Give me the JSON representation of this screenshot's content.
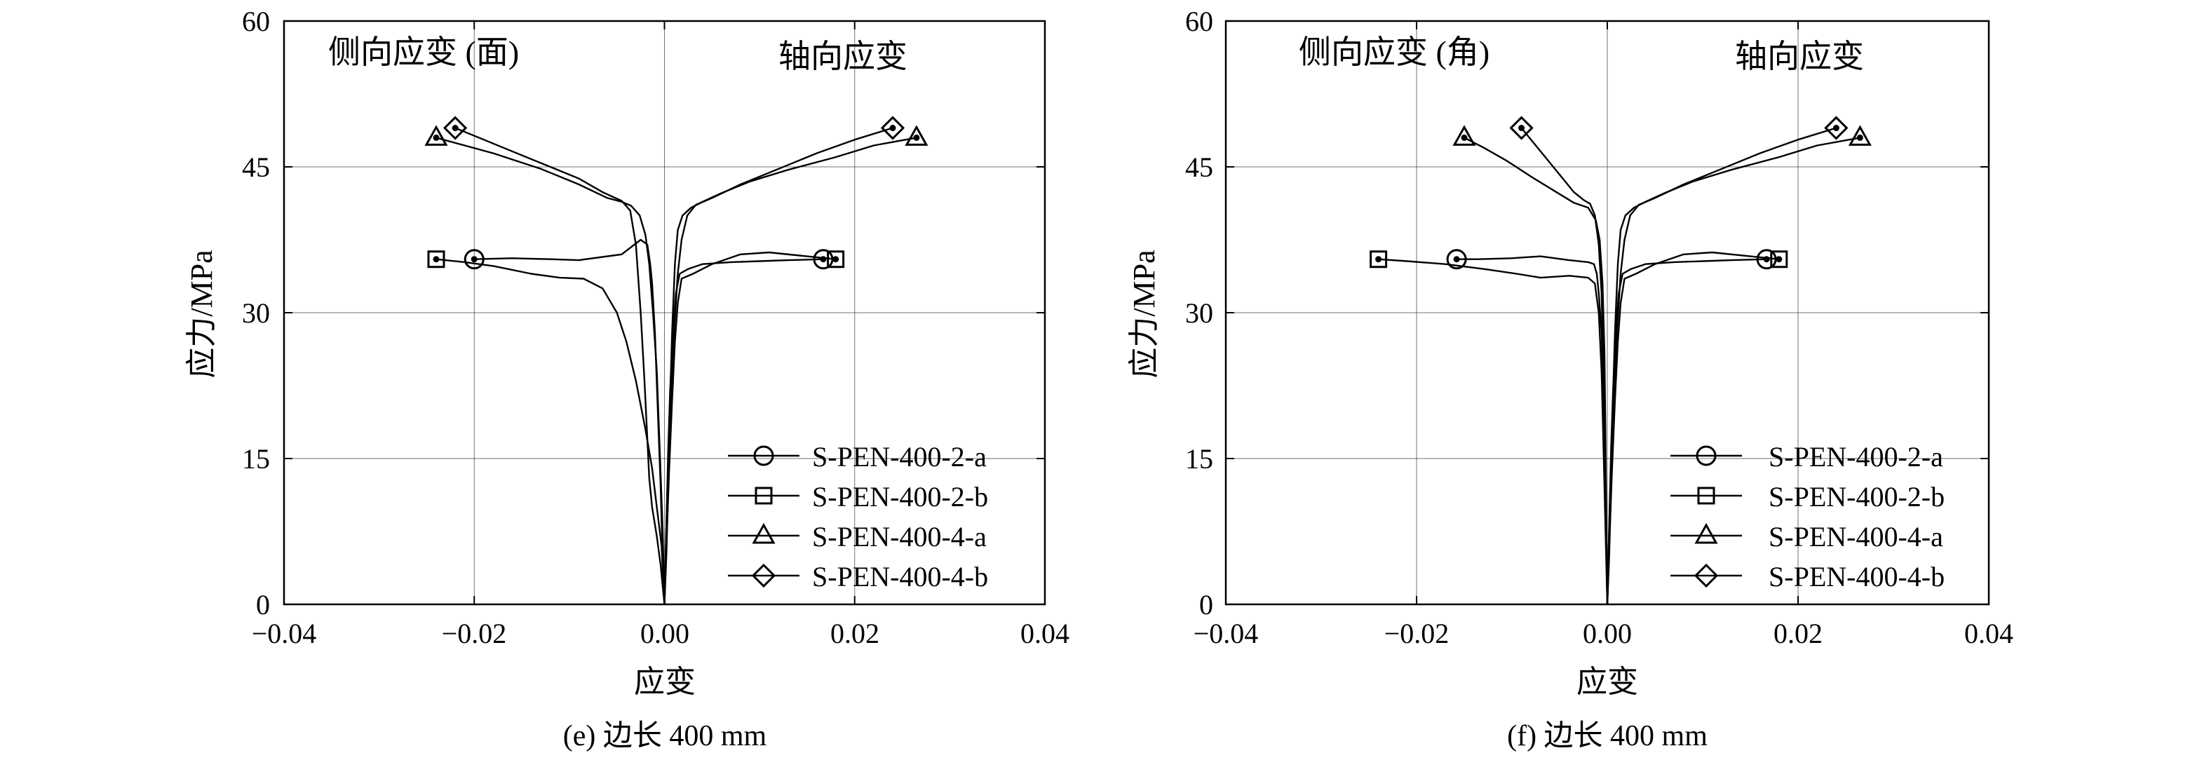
{
  "chart_data": [
    {
      "type": "line",
      "panel": "e",
      "caption": "(e) 边长 400 mm",
      "xlabel": "应变",
      "ylabel": "应力/MPa",
      "xlim": [
        -0.04,
        0.04
      ],
      "ylim": [
        0,
        60
      ],
      "x_ticks": [
        -0.04,
        -0.02,
        0.0,
        0.02,
        0.04
      ],
      "x_tick_labels": [
        "−0.04",
        "−0.02",
        "0.00",
        "0.02",
        "0.04"
      ],
      "y_ticks": [
        0,
        15,
        30,
        45,
        60
      ],
      "y_tick_labels": [
        "0",
        "15",
        "30",
        "45",
        "60"
      ],
      "grid": true,
      "legend_position": "bottom-right",
      "annotations": [
        {
          "text": "侧向应变 (面)",
          "side": "left"
        },
        {
          "text": "轴向应变",
          "side": "right"
        }
      ],
      "series": [
        {
          "name": "S-PEN-400-2-a",
          "marker": "circle",
          "lateral": [
            [
              0,
              0
            ],
            [
              -0.0002,
              5
            ],
            [
              -0.0004,
              12
            ],
            [
              -0.0007,
              20
            ],
            [
              -0.001,
              28
            ],
            [
              -0.0013,
              33
            ],
            [
              -0.0015,
              35
            ],
            [
              -0.0018,
              37
            ],
            [
              -0.0025,
              37.5
            ],
            [
              -0.0045,
              36
            ],
            [
              -0.0068,
              35.7
            ],
            [
              -0.009,
              35.4
            ],
            [
              -0.012,
              35.5
            ],
            [
              -0.016,
              35.6
            ],
            [
              -0.02,
              35.5
            ]
          ],
          "axial": [
            [
              0,
              0
            ],
            [
              0.0002,
              8
            ],
            [
              0.0004,
              16
            ],
            [
              0.0006,
              22
            ],
            [
              0.0009,
              28
            ],
            [
              0.0012,
              32
            ],
            [
              0.0016,
              34
            ],
            [
              0.0025,
              34.5
            ],
            [
              0.004,
              35
            ],
            [
              0.007,
              35.2
            ],
            [
              0.01,
              35.3
            ],
            [
              0.013,
              35.4
            ],
            [
              0.0167,
              35.5
            ]
          ]
        },
        {
          "name": "S-PEN-400-2-b",
          "marker": "square",
          "lateral": [
            [
              0,
              0
            ],
            [
              -0.0003,
              6
            ],
            [
              -0.0008,
              10
            ],
            [
              -0.0013,
              14
            ],
            [
              -0.002,
              18
            ],
            [
              -0.003,
              23
            ],
            [
              -0.004,
              27
            ],
            [
              -0.005,
              30
            ],
            [
              -0.0065,
              32.5
            ],
            [
              -0.0085,
              33.5
            ],
            [
              -0.011,
              33.6
            ],
            [
              -0.014,
              34
            ],
            [
              -0.018,
              34.8
            ],
            [
              -0.021,
              35.2
            ],
            [
              -0.024,
              35.5
            ]
          ],
          "axial": [
            [
              0,
              0
            ],
            [
              0.0002,
              6
            ],
            [
              0.0005,
              14
            ],
            [
              0.0008,
              21
            ],
            [
              0.0011,
              27
            ],
            [
              0.0014,
              31
            ],
            [
              0.0018,
              33.5
            ],
            [
              0.003,
              34
            ],
            [
              0.005,
              35
            ],
            [
              0.008,
              36
            ],
            [
              0.011,
              36.2
            ],
            [
              0.015,
              35.8
            ],
            [
              0.018,
              35.5
            ]
          ]
        },
        {
          "name": "S-PEN-400-4-a",
          "marker": "triangle",
          "lateral": [
            [
              0,
              0
            ],
            [
              -0.0002,
              8
            ],
            [
              -0.0005,
              16
            ],
            [
              -0.0008,
              24
            ],
            [
              -0.0012,
              30
            ],
            [
              -0.0016,
              35
            ],
            [
              -0.002,
              38
            ],
            [
              -0.0026,
              40
            ],
            [
              -0.0035,
              41
            ],
            [
              -0.0045,
              41.4
            ],
            [
              -0.006,
              41.8
            ],
            [
              -0.009,
              43.2
            ],
            [
              -0.013,
              44.8
            ],
            [
              -0.018,
              46.4
            ],
            [
              -0.021,
              47.2
            ],
            [
              -0.024,
              48
            ]
          ],
          "axial": [
            [
              0,
              0
            ],
            [
              0.0002,
              8
            ],
            [
              0.0005,
              18
            ],
            [
              0.0008,
              28
            ],
            [
              0.0011,
              35
            ],
            [
              0.0014,
              38.5
            ],
            [
              0.0019,
              40
            ],
            [
              0.0028,
              40.8
            ],
            [
              0.004,
              41.4
            ],
            [
              0.006,
              42.3
            ],
            [
              0.009,
              43.5
            ],
            [
              0.013,
              44.7
            ],
            [
              0.018,
              46
            ],
            [
              0.022,
              47.2
            ],
            [
              0.0265,
              48
            ]
          ]
        },
        {
          "name": "S-PEN-400-4-b",
          "marker": "diamond",
          "lateral": [
            [
              0,
              0
            ],
            [
              -0.0004,
              4
            ],
            [
              -0.0008,
              7
            ],
            [
              -0.0013,
              10
            ],
            [
              -0.0016,
              13
            ],
            [
              -0.0018,
              17
            ],
            [
              -0.0021,
              23
            ],
            [
              -0.0025,
              30
            ],
            [
              -0.003,
              37
            ],
            [
              -0.0036,
              40.5
            ],
            [
              -0.0045,
              41.5
            ],
            [
              -0.0065,
              42.4
            ],
            [
              -0.009,
              43.8
            ],
            [
              -0.013,
              45.4
            ],
            [
              -0.017,
              47
            ],
            [
              -0.022,
              49
            ]
          ],
          "axial": [
            [
              0,
              0
            ],
            [
              0.0002,
              5
            ],
            [
              0.0004,
              12
            ],
            [
              0.0007,
              20
            ],
            [
              0.001,
              28
            ],
            [
              0.0014,
              34
            ],
            [
              0.0018,
              37.5
            ],
            [
              0.0024,
              40
            ],
            [
              0.0033,
              41.1
            ],
            [
              0.005,
              41.8
            ],
            [
              0.008,
              43.2
            ],
            [
              0.012,
              44.8
            ],
            [
              0.016,
              46.4
            ],
            [
              0.02,
              47.8
            ],
            [
              0.024,
              49
            ]
          ]
        }
      ]
    },
    {
      "type": "line",
      "panel": "f",
      "caption": "(f) 边长 400 mm",
      "xlabel": "应变",
      "ylabel": "应力/MPa",
      "xlim": [
        -0.04,
        0.04
      ],
      "ylim": [
        0,
        60
      ],
      "x_ticks": [
        -0.04,
        -0.02,
        0.0,
        0.02,
        0.04
      ],
      "x_tick_labels": [
        "−0.04",
        "−0.02",
        "0.00",
        "0.02",
        "0.04"
      ],
      "y_ticks": [
        0,
        15,
        30,
        45,
        60
      ],
      "y_tick_labels": [
        "0",
        "15",
        "30",
        "45",
        "60"
      ],
      "grid": true,
      "legend_position": "bottom-right",
      "annotations": [
        {
          "text": "侧向应变 (角)",
          "side": "left"
        },
        {
          "text": "轴向应变",
          "side": "right"
        }
      ],
      "series": [
        {
          "name": "S-PEN-400-2-a",
          "marker": "circle",
          "lateral": [
            [
              0,
              0
            ],
            [
              -0.0001,
              6
            ],
            [
              -0.0002,
              14
            ],
            [
              -0.0004,
              22
            ],
            [
              -0.0006,
              28
            ],
            [
              -0.0009,
              32
            ],
            [
              -0.0011,
              34
            ],
            [
              -0.0014,
              35
            ],
            [
              -0.002,
              35.2
            ],
            [
              -0.004,
              35.4
            ],
            [
              -0.007,
              35.8
            ],
            [
              -0.01,
              35.6
            ],
            [
              -0.0135,
              35.5
            ],
            [
              -0.0158,
              35.5
            ]
          ],
          "axial": [
            [
              0,
              0
            ],
            [
              0.0002,
              8
            ],
            [
              0.0004,
              16
            ],
            [
              0.0006,
              22
            ],
            [
              0.0009,
              28
            ],
            [
              0.0012,
              32
            ],
            [
              0.0016,
              34
            ],
            [
              0.0025,
              34.5
            ],
            [
              0.004,
              35
            ],
            [
              0.007,
              35.2
            ],
            [
              0.01,
              35.3
            ],
            [
              0.013,
              35.4
            ],
            [
              0.0167,
              35.5
            ]
          ]
        },
        {
          "name": "S-PEN-400-2-b",
          "marker": "square",
          "lateral": [
            [
              0,
              0
            ],
            [
              -0.0002,
              8
            ],
            [
              -0.0004,
              16
            ],
            [
              -0.0006,
              24
            ],
            [
              -0.0009,
              30
            ],
            [
              -0.0013,
              33
            ],
            [
              -0.002,
              33.6
            ],
            [
              -0.004,
              33.8
            ],
            [
              -0.007,
              33.6
            ],
            [
              -0.0095,
              34
            ],
            [
              -0.013,
              34.5
            ],
            [
              -0.017,
              35
            ],
            [
              -0.021,
              35.3
            ],
            [
              -0.024,
              35.5
            ]
          ],
          "axial": [
            [
              0,
              0
            ],
            [
              0.0002,
              6
            ],
            [
              0.0005,
              14
            ],
            [
              0.0008,
              21
            ],
            [
              0.0011,
              27
            ],
            [
              0.0014,
              31
            ],
            [
              0.0018,
              33.5
            ],
            [
              0.003,
              34
            ],
            [
              0.005,
              35
            ],
            [
              0.008,
              36
            ],
            [
              0.011,
              36.2
            ],
            [
              0.015,
              35.8
            ],
            [
              0.018,
              35.5
            ]
          ]
        },
        {
          "name": "S-PEN-400-4-a",
          "marker": "triangle",
          "lateral": [
            [
              0,
              0
            ],
            [
              -0.0001,
              8
            ],
            [
              -0.0002,
              18
            ],
            [
              -0.0003,
              26
            ],
            [
              -0.0005,
              33
            ],
            [
              -0.0008,
              37.5
            ],
            [
              -0.0012,
              39.5
            ],
            [
              -0.002,
              40.8
            ],
            [
              -0.0035,
              41.3
            ],
            [
              -0.0055,
              42.5
            ],
            [
              -0.008,
              44
            ],
            [
              -0.0105,
              45.6
            ],
            [
              -0.013,
              47
            ],
            [
              -0.015,
              48
            ]
          ],
          "axial": [
            [
              0,
              0
            ],
            [
              0.0002,
              8
            ],
            [
              0.0005,
              18
            ],
            [
              0.0008,
              28
            ],
            [
              0.0011,
              35
            ],
            [
              0.0014,
              38.5
            ],
            [
              0.0019,
              40
            ],
            [
              0.0028,
              40.8
            ],
            [
              0.004,
              41.4
            ],
            [
              0.006,
              42.3
            ],
            [
              0.009,
              43.5
            ],
            [
              0.013,
              44.7
            ],
            [
              0.018,
              46
            ],
            [
              0.022,
              47.2
            ],
            [
              0.0265,
              48
            ]
          ]
        },
        {
          "name": "S-PEN-400-4-b",
          "marker": "diamond",
          "lateral": [
            [
              0,
              0
            ],
            [
              -0.0001,
              6
            ],
            [
              -0.0002,
              14
            ],
            [
              -0.0004,
              24
            ],
            [
              -0.0006,
              32
            ],
            [
              -0.0009,
              37
            ],
            [
              -0.0013,
              40
            ],
            [
              -0.0018,
              41.2
            ],
            [
              -0.0025,
              41.6
            ],
            [
              -0.0035,
              42.4
            ],
            [
              -0.005,
              44.2
            ],
            [
              -0.0065,
              46
            ],
            [
              -0.008,
              47.8
            ],
            [
              -0.009,
              49
            ]
          ],
          "axial": [
            [
              0,
              0
            ],
            [
              0.0002,
              5
            ],
            [
              0.0004,
              12
            ],
            [
              0.0007,
              20
            ],
            [
              0.001,
              28
            ],
            [
              0.0014,
              34
            ],
            [
              0.0018,
              37.5
            ],
            [
              0.0024,
              40
            ],
            [
              0.0033,
              41.1
            ],
            [
              0.005,
              41.8
            ],
            [
              0.008,
              43.2
            ],
            [
              0.012,
              44.8
            ],
            [
              0.016,
              46.4
            ],
            [
              0.02,
              47.8
            ],
            [
              0.024,
              49
            ]
          ]
        }
      ]
    }
  ]
}
